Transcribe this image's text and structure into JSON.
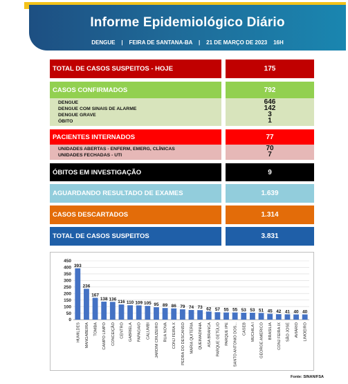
{
  "header": {
    "title": "Informe Epidemiológico Diário",
    "subtitle": "DENGUE    |    FEIRA DE SANTANA-BA    |    21 DE MARÇO DE 2023    16H"
  },
  "colors": {
    "suspeitos_hoje": "#c00000",
    "confirmados": "#92d050",
    "confirmados_light": "#d8e4bc",
    "internados": "#ff0000",
    "internados_light": "#e6b8b7",
    "obitos": "#000000",
    "aguardando": "#92cddc",
    "descartados": "#e36c09",
    "total": "#1f5fa8",
    "bars": "#4472c4"
  },
  "rows": {
    "suspeitos_hoje": {
      "label": "TOTAL DE CASOS SUSPEITOS - HOJE",
      "value": "175"
    },
    "confirmados": {
      "label": "CASOS CONFIRMADOS",
      "value": "792"
    },
    "internados": {
      "label": "PACIENTES INTERNADOS",
      "value": "77"
    },
    "obitos": {
      "label": "ÓBITOS EM INVESTIGAÇÃO",
      "value": "9"
    },
    "aguardando": {
      "label": "AGUARDANDO RESULTADO DE EXAMES",
      "value": "1.639"
    },
    "descartados": {
      "label": "CASOS DESCARTADOS",
      "value": "1.314"
    },
    "total": {
      "label": "TOTAL DE CASOS SUSPEITOS",
      "value": "3.831"
    }
  },
  "confirmados_detail": [
    {
      "label": "DENGUE",
      "value": "646"
    },
    {
      "label": "DENGUE COM SINAIS DE ALARME",
      "value": "142"
    },
    {
      "label": "DENGUE GRAVE",
      "value": "3"
    },
    {
      "label": "ÓBITO",
      "value": "1"
    }
  ],
  "internados_detail": [
    {
      "label": "UNIDADES ABERTAS - ENFERM, EMERG, CLÍNICAS",
      "value": "70"
    },
    {
      "label": "UNIDADES FECHADAS - UTI",
      "value": "7"
    }
  ],
  "chart_data": {
    "type": "bar",
    "categories": [
      "HUMILDES",
      "MANGABEIRA",
      "TOMBA",
      "CAMPO LIMPO",
      "CONCEIÇÃO",
      "CENTRO",
      "GABRIELA",
      "PAPAGAIO",
      "CALUMBI",
      "JARDIM CRUZEIRO",
      "RUA NOVA",
      "CONJ FEIRA X",
      "PEDRA DO DESCANSO",
      "MARIA QUITERIA",
      "QUEIMADINHA",
      "ASA BRANCA",
      "PARQUE GETÚLIO",
      "PARQUE IPE",
      "SANTO ANTONIO DOS...",
      "CASEB",
      "MUCHILA I",
      "GEORGE AMERICO",
      "BRASILIA",
      "CONJ FEIRA IX",
      "SÃO JOSÉ",
      "AVIÁRIO",
      "LIMOEIRO"
    ],
    "values": [
      393,
      236,
      167,
      138,
      136,
      116,
      110,
      109,
      105,
      95,
      89,
      86,
      79,
      74,
      73,
      62,
      57,
      55,
      55,
      53,
      53,
      51,
      45,
      42,
      41,
      40,
      40
    ],
    "yticks": [
      "0",
      "50",
      "100",
      "150",
      "200",
      "250",
      "300",
      "350",
      "400",
      "450"
    ],
    "ylim": [
      0,
      450
    ],
    "grid": true,
    "source": "Fonte: SINAN/FSA"
  }
}
